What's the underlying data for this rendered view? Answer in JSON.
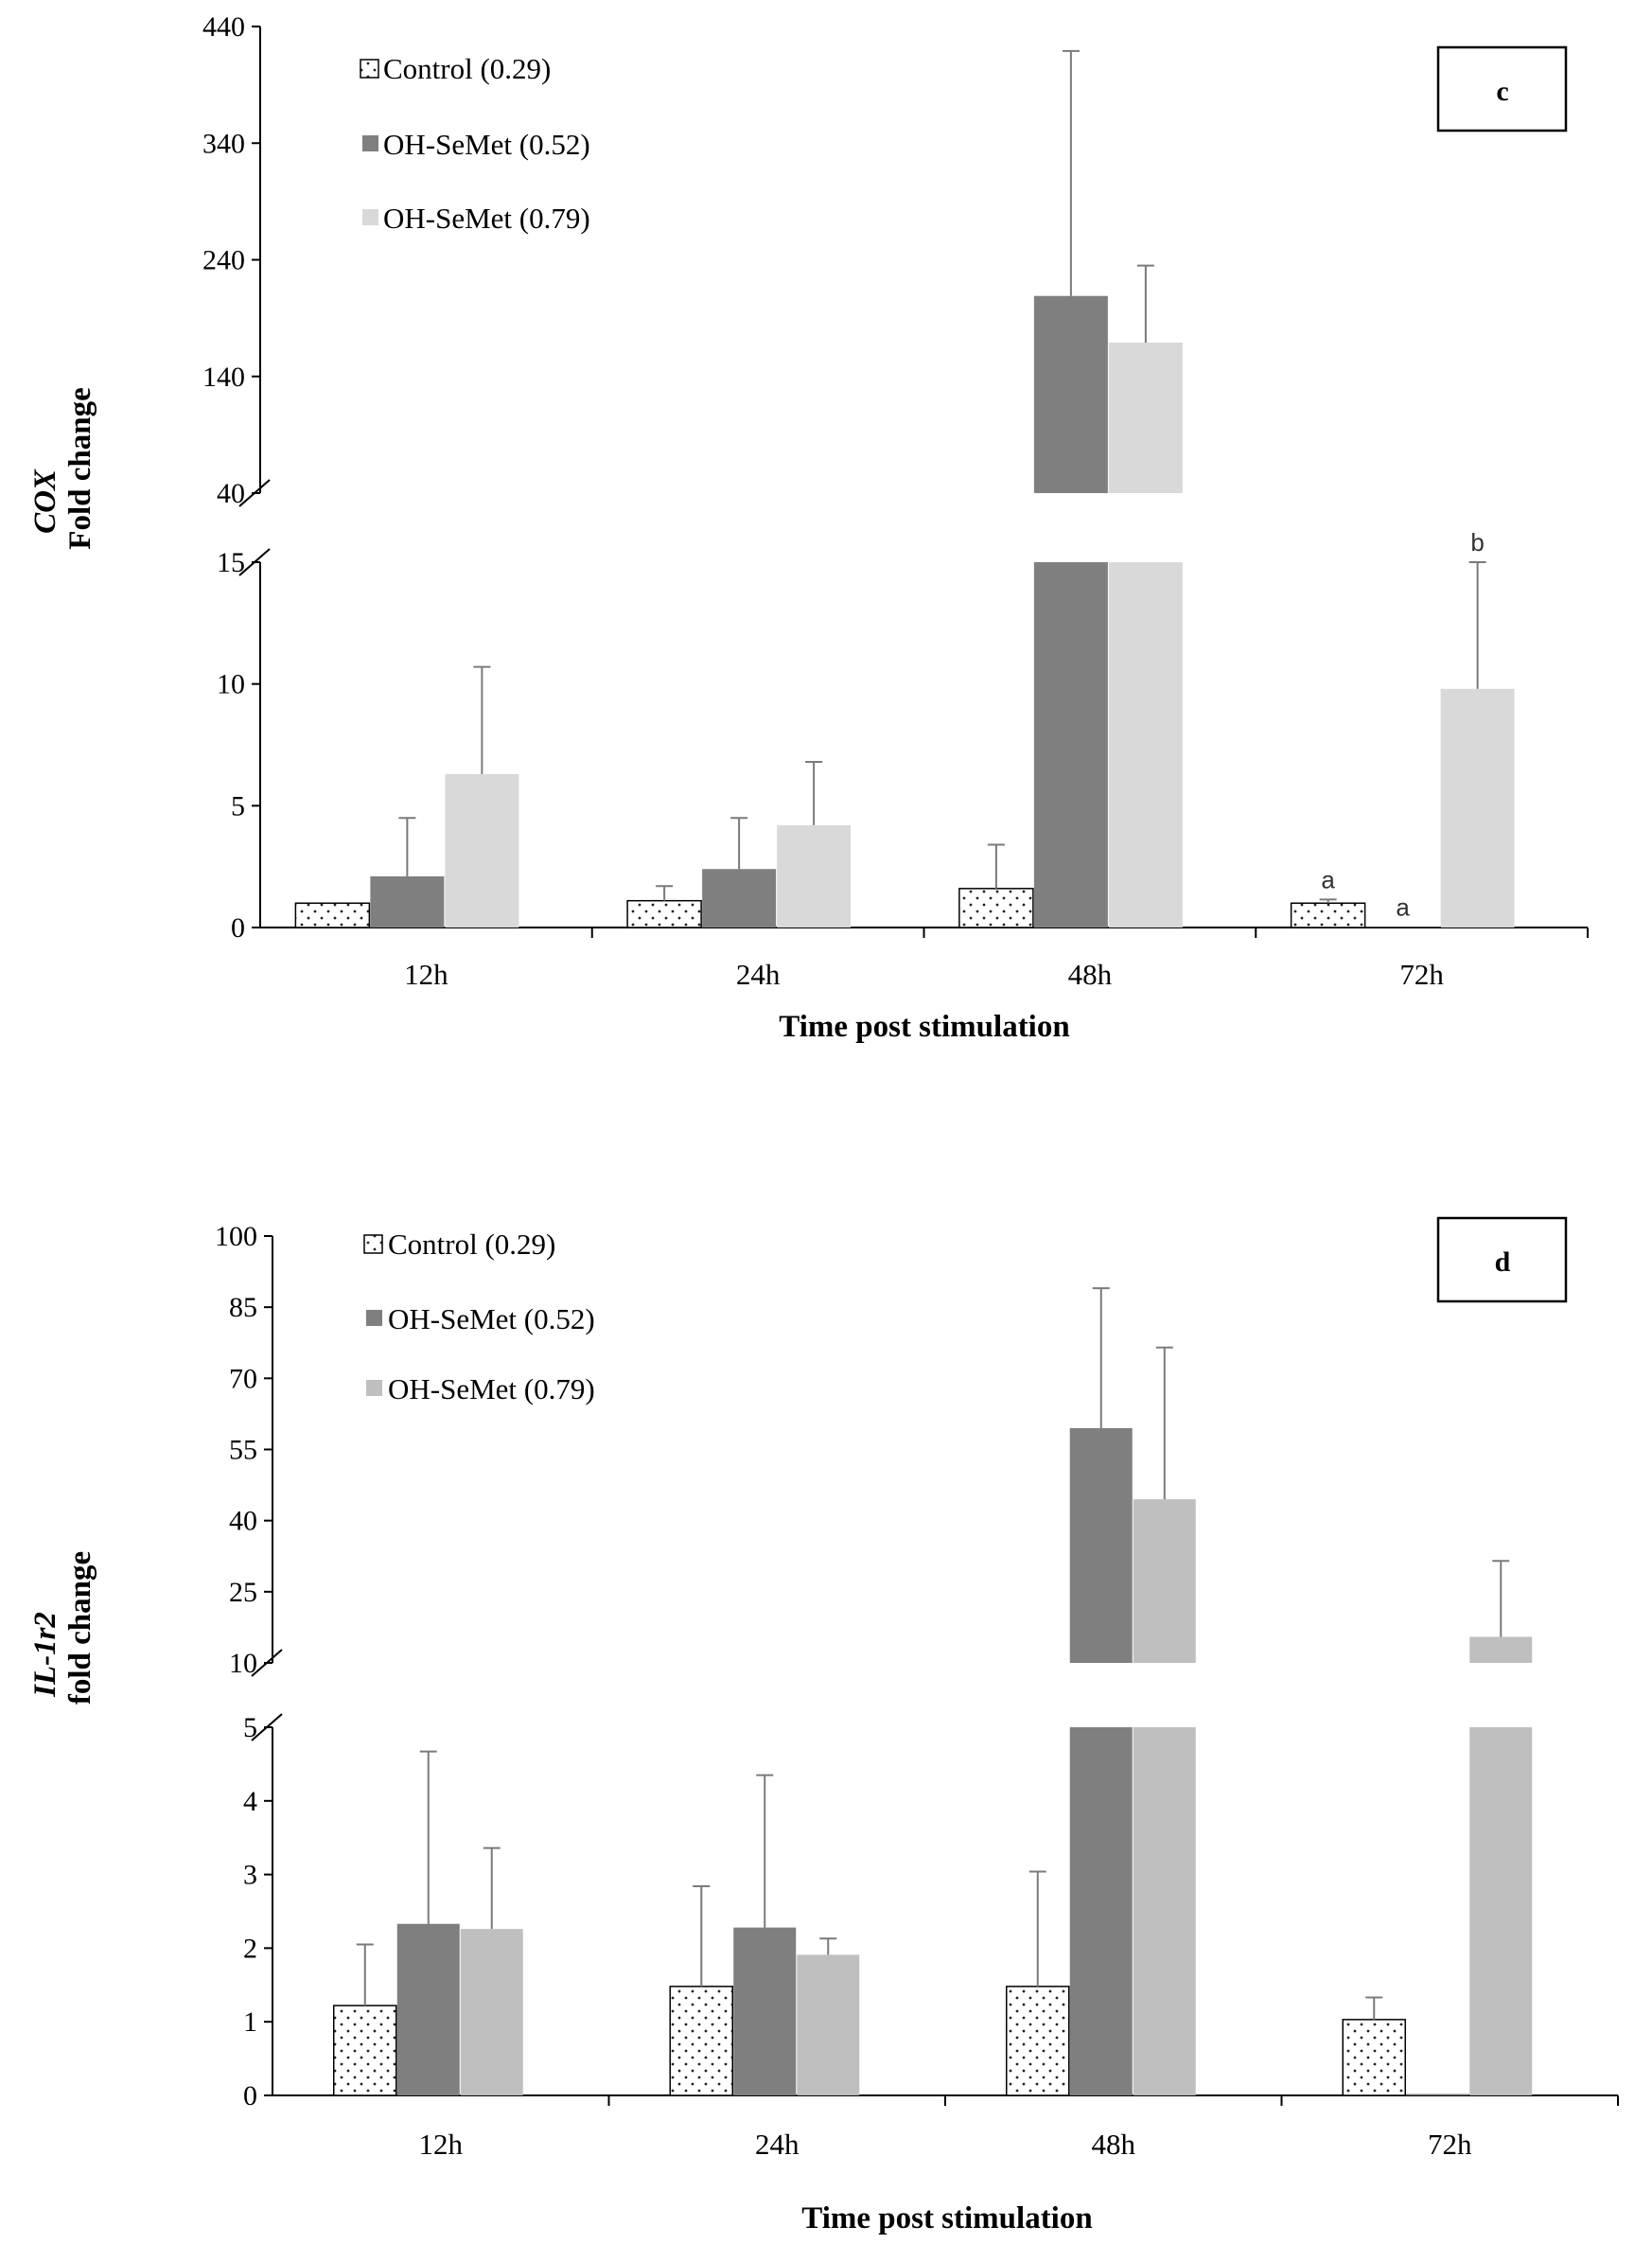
{
  "chart_data": [
    {
      "panel": "c",
      "type": "bar",
      "xlabel": "Time post stimulation",
      "ylabel_gene": "COX",
      "ylabel_rest": "Fold change",
      "categories": [
        "12h",
        "24h",
        "48h",
        "72h"
      ],
      "legend": [
        {
          "label": "Control (0.29)",
          "color": "#ffffff",
          "pattern": "dots"
        },
        {
          "label": "OH-SeMet (0.52)",
          "color": "#7f7f7f",
          "pattern": "solid"
        },
        {
          "label": "OH-SeMet (0.79)",
          "color": "#d9d9d9",
          "pattern": "solid"
        }
      ],
      "y_axis_break": {
        "lower_range": [
          0,
          15
        ],
        "lower_ticks": [
          0,
          5,
          10,
          15
        ],
        "upper_range": [
          40,
          440
        ],
        "upper_ticks": [
          40,
          140,
          240,
          340,
          440
        ]
      },
      "series": [
        {
          "name": "Control (0.29)",
          "values": [
            1.0,
            1.1,
            1.6,
            1.0
          ],
          "errors": [
            0,
            0.6,
            1.8,
            0.15
          ]
        },
        {
          "name": "OH-SeMet (0.52)",
          "values": [
            2.1,
            2.4,
            209,
            0.02
          ],
          "errors": [
            2.4,
            2.1,
            210,
            0
          ]
        },
        {
          "name": "OH-SeMet (0.79)",
          "values": [
            6.3,
            4.2,
            169,
            9.8
          ],
          "errors": [
            4.4,
            2.6,
            66,
            5.2
          ]
        }
      ],
      "annotations": [
        {
          "category": "72h",
          "series": "Control (0.29)",
          "text": "a"
        },
        {
          "category": "72h",
          "series": "OH-SeMet (0.52)",
          "text": "a"
        },
        {
          "category": "72h",
          "series": "OH-SeMet (0.79)",
          "text": "b"
        }
      ]
    },
    {
      "panel": "d",
      "type": "bar",
      "xlabel": "Time post stimulation",
      "ylabel_gene": "IL-1r2",
      "ylabel_rest": "fold change",
      "categories": [
        "12h",
        "24h",
        "48h",
        "72h"
      ],
      "legend": [
        {
          "label": "Control (0.29)",
          "color": "#ffffff",
          "pattern": "dots"
        },
        {
          "label": "OH-SeMet (0.52)",
          "color": "#7f7f7f",
          "pattern": "solid"
        },
        {
          "label": "OH-SeMet (0.79)",
          "color": "#bfbfbf",
          "pattern": "solid"
        }
      ],
      "y_axis_break": {
        "lower_range": [
          0,
          5
        ],
        "lower_ticks": [
          0,
          1,
          2,
          3,
          4,
          5
        ],
        "upper_range": [
          10,
          100
        ],
        "upper_ticks": [
          10,
          25,
          40,
          55,
          70,
          85,
          100
        ]
      },
      "series": [
        {
          "name": "Control (0.29)",
          "values": [
            1.22,
            1.48,
            1.48,
            1.03
          ],
          "errors": [
            0.83,
            1.36,
            1.56,
            0.3
          ]
        },
        {
          "name": "OH-SeMet (0.52)",
          "values": [
            2.33,
            2.28,
            59.5,
            0.02
          ],
          "errors": [
            2.34,
            2.07,
            29.5,
            0
          ]
        },
        {
          "name": "OH-SeMet (0.79)",
          "values": [
            2.26,
            1.91,
            44.5,
            15.5
          ],
          "errors": [
            1.1,
            0.22,
            32,
            16
          ]
        }
      ],
      "annotations": []
    }
  ]
}
